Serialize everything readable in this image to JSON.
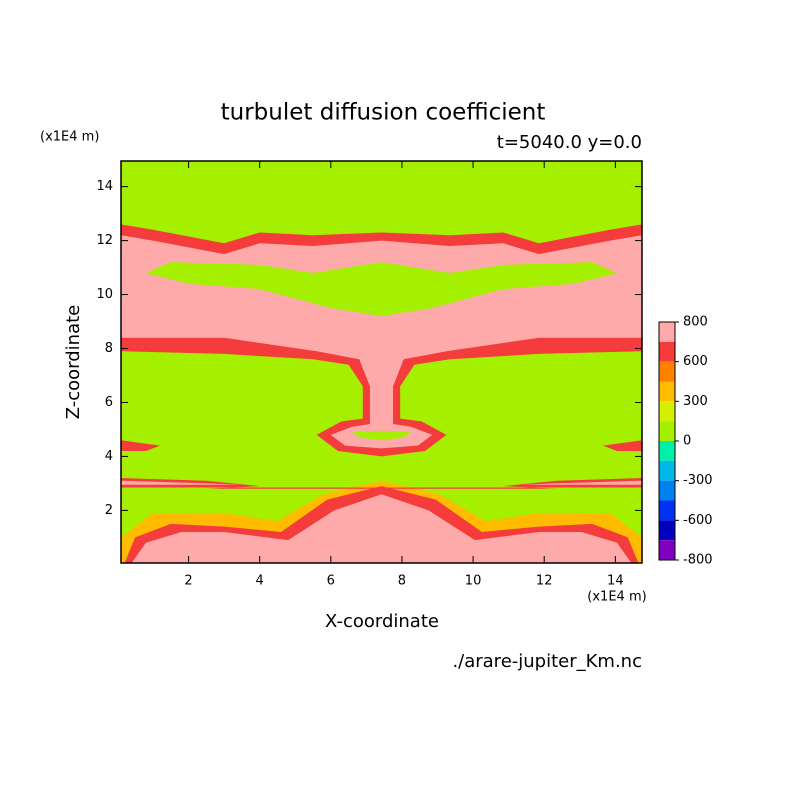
{
  "chart_data": {
    "type": "contour",
    "title": "turbulet diffusion coefficient",
    "subtitle": "t=5040.0 y=0.0",
    "x_label": "X-coordinate",
    "y_label": "Z-coordinate",
    "x_unit": "(x1E4 m)",
    "y_unit": "(x1E4 m)",
    "source": "./arare-jupiter_Km.nc",
    "xlim": [
      0.1,
      14.75
    ],
    "ylim": [
      0.05,
      14.95
    ],
    "xticks": [
      2,
      4,
      6,
      8,
      10,
      12,
      14
    ],
    "yticks": [
      2,
      4,
      6,
      8,
      10,
      12,
      14
    ],
    "levels": [
      800,
      700,
      600,
      450,
      300,
      150,
      0,
      -150,
      -300,
      -450,
      -600,
      -700,
      -800
    ],
    "colors": [
      "#ffaaaa",
      "#f43c3c",
      "#ff7f00",
      "#ffbb00",
      "#d4f000",
      "#a4f000",
      "#00f0a8",
      "#00b8e8",
      "#0080f0",
      "#0030f0",
      "#0000c0",
      "#8000c0"
    ],
    "colorbar_ticks": [
      800,
      600,
      300,
      0,
      -300,
      -600,
      -800
    ]
  }
}
